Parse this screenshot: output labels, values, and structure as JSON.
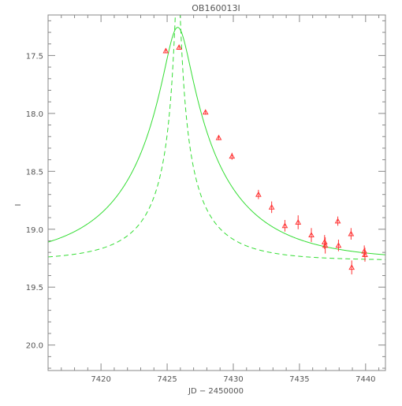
{
  "chart_data": {
    "type": "scatter",
    "title": "OB160013I",
    "xlabel": "JD − 2450000",
    "ylabel": "I",
    "xlim": [
      7416,
      7441.5
    ],
    "ylim": [
      20.22,
      17.15
    ],
    "y_inverted": true,
    "x_ticks": [
      7420,
      7425,
      7430,
      7435,
      7440
    ],
    "x_tick_labels": [
      "7420",
      "7425",
      "7430",
      "7435",
      "7440"
    ],
    "y_ticks": [
      17.5,
      18.0,
      18.5,
      19.0,
      19.5,
      20.0
    ],
    "y_tick_labels": [
      "17.5",
      "18.0",
      "18.5",
      "19.0",
      "19.5",
      "20.0"
    ],
    "x_minor_step": 1,
    "y_minor_step": 0.1,
    "grid": false,
    "colors": {
      "frame": "#888888",
      "data": "#ff3333",
      "model": "#33dd33"
    },
    "series": [
      {
        "kind": "points",
        "marker": "triangle",
        "points": [
          {
            "x": 7424.9,
            "y": 17.46,
            "err": 0.02
          },
          {
            "x": 7425.9,
            "y": 17.43,
            "err": 0.02
          },
          {
            "x": 7427.9,
            "y": 17.99,
            "err": 0.02
          },
          {
            "x": 7428.9,
            "y": 18.21,
            "err": 0.02
          },
          {
            "x": 7429.9,
            "y": 18.37,
            "err": 0.03
          },
          {
            "x": 7431.9,
            "y": 18.7,
            "err": 0.04
          },
          {
            "x": 7432.9,
            "y": 18.81,
            "err": 0.05
          },
          {
            "x": 7433.9,
            "y": 18.97,
            "err": 0.05
          },
          {
            "x": 7434.9,
            "y": 18.94,
            "err": 0.06
          },
          {
            "x": 7435.9,
            "y": 19.05,
            "err": 0.06
          },
          {
            "x": 7436.9,
            "y": 19.11,
            "err": 0.06
          },
          {
            "x": 7436.95,
            "y": 19.14,
            "err": 0.07
          },
          {
            "x": 7437.9,
            "y": 18.93,
            "err": 0.04
          },
          {
            "x": 7437.95,
            "y": 19.14,
            "err": 0.05
          },
          {
            "x": 7438.9,
            "y": 19.04,
            "err": 0.05
          },
          {
            "x": 7438.95,
            "y": 19.33,
            "err": 0.06
          },
          {
            "x": 7439.9,
            "y": 19.19,
            "err": 0.05
          },
          {
            "x": 7439.95,
            "y": 19.22,
            "err": 0.06
          }
        ]
      },
      {
        "kind": "model",
        "style": "solid",
        "model": {
          "t0": 7425.8,
          "tE": 8.0,
          "u0": 0.12,
          "base": 19.27,
          "fs": 0.73
        }
      },
      {
        "kind": "model",
        "style": "dashed",
        "model": {
          "t0": 7425.8,
          "tE": 6.0,
          "u0": 0.03,
          "base": 19.27,
          "fs": 0.27
        }
      }
    ]
  }
}
